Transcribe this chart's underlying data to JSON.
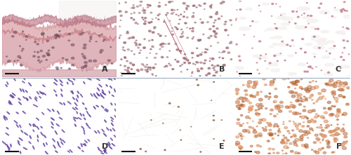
{
  "figsize": [
    5.0,
    2.21
  ],
  "dpi": 100,
  "nrows": 2,
  "ncols": 3,
  "labels": [
    "A",
    "B",
    "C",
    "D",
    "E",
    "F"
  ],
  "label_fontsize": 8,
  "label_color": "#333333",
  "background_color": "#ffffff",
  "divider_color": "#a0b0c0",
  "divider_linewidth": 0.8,
  "panel_A": {
    "bg": "#f0e4e6",
    "tissue1": "#d4949e",
    "tissue2": "#c87880",
    "mucosa": "#b87080",
    "cell": "#705060"
  },
  "panel_B": {
    "bg": "#dbc0c4",
    "cell": "#a07078",
    "line1_color": "#b06070",
    "line2_color": "#c07080"
  },
  "panel_C": {
    "bg": "#ecdcd8",
    "space": "#f5f0f0",
    "cell": "#c07080"
  },
  "panel_D": {
    "bg": "#e8d0d8",
    "nucleus": "#6040a0"
  },
  "panel_E": {
    "bg": "#f0ece6",
    "dot": "#7b5020",
    "fiber": "#d8c8bc"
  },
  "panel_F": {
    "bg": "#c8784a",
    "colors": [
      "#b06030",
      "#d08850",
      "#c07040",
      "#e09060"
    ]
  },
  "scalebar_color": "#111111"
}
